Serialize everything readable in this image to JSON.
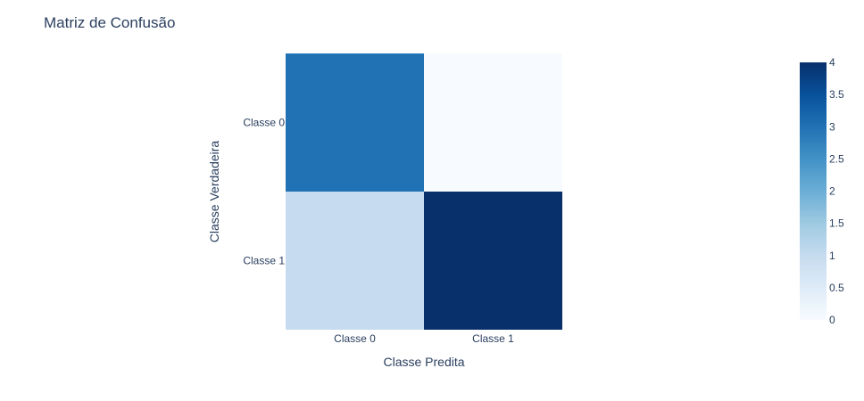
{
  "chart_data": {
    "type": "heatmap",
    "title": "Matriz de Confusão",
    "xlabel": "Classe Predita",
    "ylabel": "Classe Verdadeira",
    "x_categories": [
      "Classe 0",
      "Classe 1"
    ],
    "y_categories": [
      "Classe 0",
      "Classe 1"
    ],
    "z": [
      [
        3,
        0
      ],
      [
        1,
        4
      ]
    ],
    "colorscale": "Blues",
    "zmin": 0,
    "zmax": 4,
    "colorbar_ticks": [
      "0",
      "0.5",
      "1",
      "1.5",
      "2",
      "2.5",
      "3",
      "3.5",
      "4"
    ],
    "colorbar_tick_values": [
      0,
      0.5,
      1,
      1.5,
      2,
      2.5,
      3,
      3.5,
      4
    ],
    "colors": {
      "scale": [
        "#f7fbff",
        "#deebf7",
        "#c6dbef",
        "#9ecae1",
        "#6baed6",
        "#4292c6",
        "#2171b5",
        "#08519c",
        "#08306b"
      ],
      "text": "#2a3f5f"
    }
  }
}
